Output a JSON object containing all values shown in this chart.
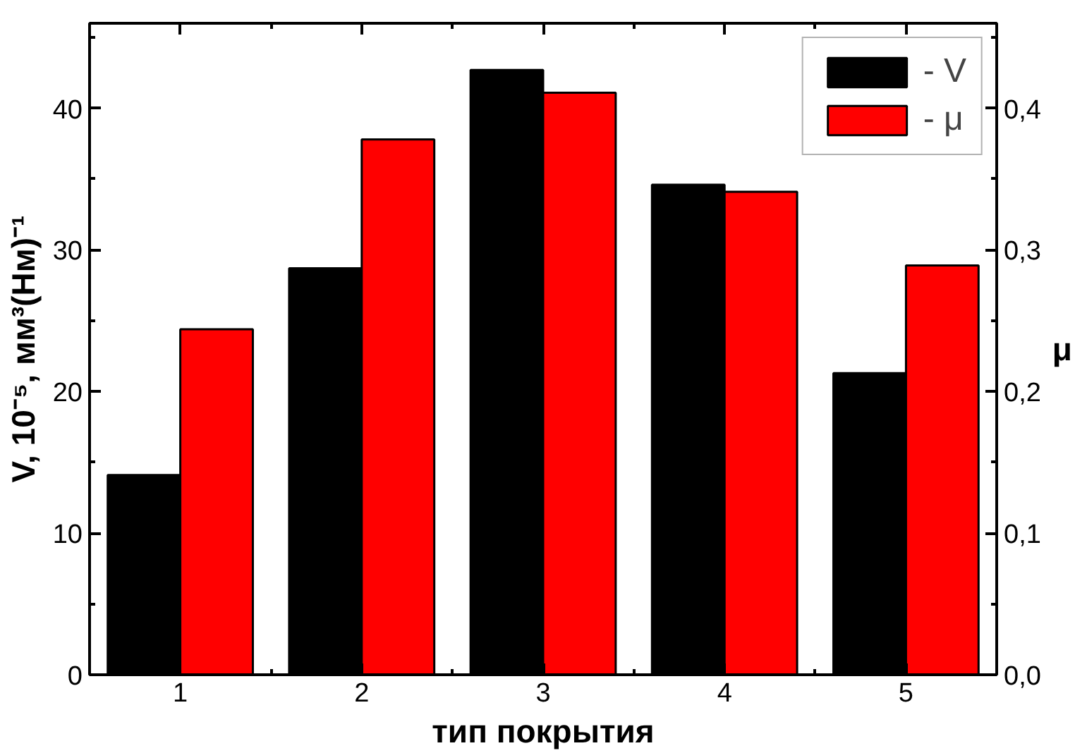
{
  "chart_data": {
    "type": "bar",
    "xlabel": "тип покрытия",
    "ylabel": "V, 10⁻⁵, мм³(Нм)⁻¹",
    "y2label": "μ",
    "categories": [
      "1",
      "2",
      "3",
      "4",
      "5"
    ],
    "series": [
      {
        "name": "- V",
        "color": "#000000",
        "values": [
          14.1,
          28.7,
          42.7,
          34.6,
          21.3
        ]
      },
      {
        "name": "- μ",
        "color": "#ff0000",
        "values": [
          0.244,
          0.378,
          0.411,
          0.341,
          0.289
        ],
        "axis": "y2"
      }
    ],
    "ylim": [
      0,
      46
    ],
    "yticks": [
      0,
      10,
      20,
      30,
      40
    ],
    "y2lim": [
      0,
      0.46
    ],
    "y2ticks": [
      {
        "value": 0,
        "label": "0,0"
      },
      {
        "value": 0.1,
        "label": "0,1"
      },
      {
        "value": 0.2,
        "label": "0,2"
      },
      {
        "value": 0.3,
        "label": "0,3"
      },
      {
        "value": 0.4,
        "label": "0,4"
      }
    ],
    "grid": false,
    "legend": "top right"
  }
}
